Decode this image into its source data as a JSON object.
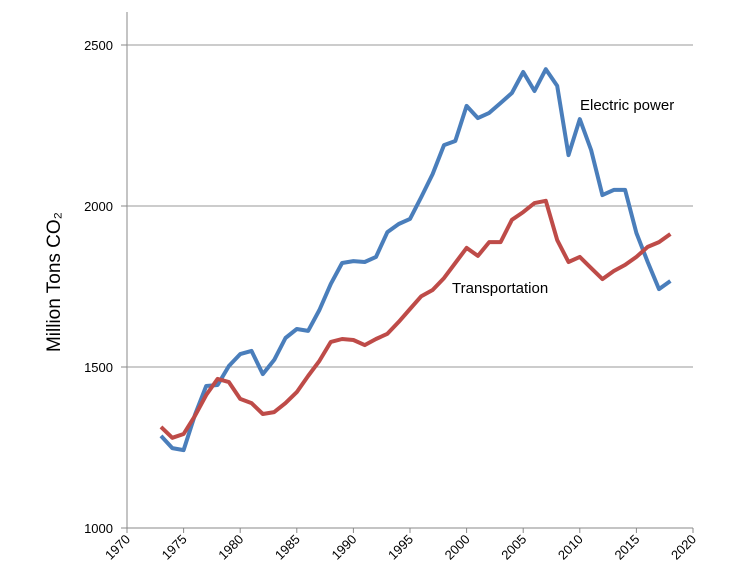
{
  "chart_data": {
    "type": "line",
    "y_label": "Million Tons CO₂",
    "x": [
      1973,
      1974,
      1975,
      1976,
      1977,
      1978,
      1979,
      1980,
      1981,
      1982,
      1983,
      1984,
      1985,
      1986,
      1987,
      1988,
      1989,
      1990,
      1991,
      1992,
      1993,
      1994,
      1995,
      1996,
      1997,
      1998,
      1999,
      2000,
      2001,
      2002,
      2003,
      2004,
      2005,
      2006,
      2007,
      2008,
      2009,
      2010,
      2011,
      2012,
      2013,
      2014,
      2015,
      2016,
      2017,
      2018
    ],
    "series": [
      {
        "name": "Electric power",
        "color": "#4a7ebb",
        "values": [
          1286,
          1248,
          1242,
          1351,
          1441,
          1444,
          1503,
          1540,
          1550,
          1478,
          1522,
          1590,
          1618,
          1612,
          1677,
          1758,
          1823,
          1829,
          1826,
          1842,
          1919,
          1944,
          1960,
          2028,
          2099,
          2189,
          2202,
          2311,
          2273,
          2289,
          2320,
          2351,
          2416,
          2357,
          2425,
          2373,
          2158,
          2270,
          2174,
          2034,
          2050,
          2050,
          1916,
          1826,
          1742,
          1767
        ]
      },
      {
        "name": "Transportation",
        "color": "#be4b48",
        "values": [
          1314,
          1280,
          1292,
          1348,
          1413,
          1463,
          1453,
          1401,
          1388,
          1354,
          1360,
          1388,
          1422,
          1472,
          1519,
          1578,
          1587,
          1584,
          1568,
          1587,
          1603,
          1640,
          1680,
          1720,
          1739,
          1776,
          1823,
          1870,
          1845,
          1888,
          1888,
          1957,
          1981,
          2009,
          2016,
          1894,
          1826,
          1842,
          1807,
          1773,
          1798,
          1817,
          1842,
          1873,
          1888,
          1913
        ]
      }
    ],
    "xlim": [
      1970,
      2020
    ],
    "xticks": [
      1970,
      1975,
      1980,
      1985,
      1990,
      1995,
      2000,
      2005,
      2010,
      2015,
      2020
    ],
    "ylim": [
      1000,
      2500
    ],
    "yticks": [
      1000,
      1500,
      2000,
      2500
    ],
    "grid": true
  }
}
